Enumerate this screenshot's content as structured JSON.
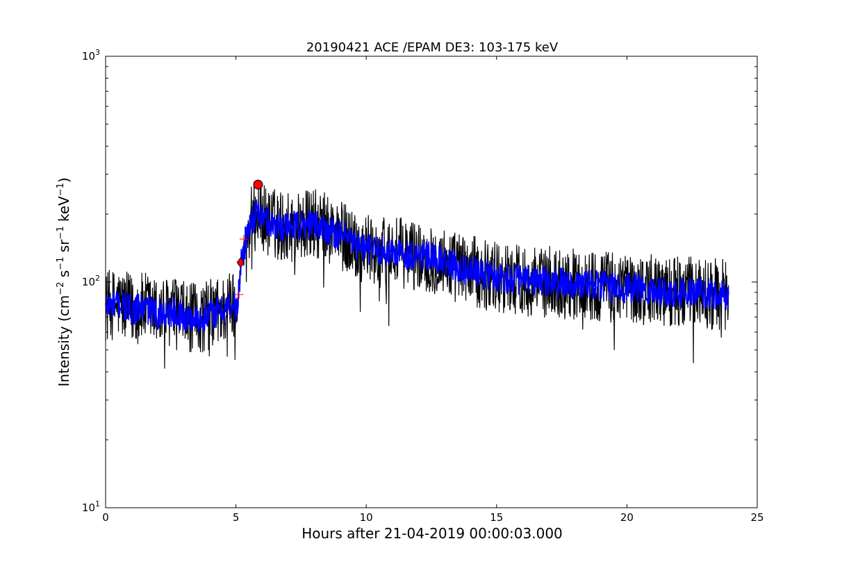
{
  "chart_data": {
    "type": "line",
    "title": "20190421 ACE /EPAM DE3: 103-175 keV",
    "xlabel": "Hours after 21-04-2019 00:00:03.000",
    "ylabel": "Intensity (cm⁻² s⁻¹ sr⁻¹ keV⁻¹)",
    "ylabel_parts": {
      "prefix": "Intensity (cm",
      "exp1": "−2",
      "s": " s",
      "exp2": "−1",
      "sr": " sr",
      "exp3": "−1",
      "kev": " keV",
      "exp4": "−1",
      "suffix": ")"
    },
    "xlim": [
      0,
      25
    ],
    "ylim": [
      10,
      1000
    ],
    "yscale": "log",
    "x_ticks": [
      0,
      5,
      10,
      15,
      20,
      25
    ],
    "x_tick_labels": [
      "0",
      "5",
      "10",
      "15",
      "20",
      "25"
    ],
    "y_major_ticks": [
      10,
      100,
      1000
    ],
    "y_tick_labels": [
      {
        "base": "10",
        "exp": "1"
      },
      {
        "base": "10",
        "exp": "2"
      },
      {
        "base": "10",
        "exp": "3"
      }
    ],
    "grid": false,
    "legend": "none",
    "series": [
      {
        "role": "raw",
        "color": "#000000",
        "x": [
          0.0,
          0.5,
          1.0,
          1.5,
          2.0,
          2.5,
          3.0,
          3.5,
          4.0,
          4.5,
          4.9,
          5.05,
          5.1,
          5.2,
          5.4,
          5.6,
          5.8,
          6.0,
          6.2,
          6.5,
          7.0,
          7.5,
          8.0,
          8.5,
          9.0,
          9.5,
          10.0,
          10.5,
          11.0,
          11.5,
          12.0,
          12.5,
          13.0,
          13.5,
          14.0,
          14.5,
          15.0,
          15.5,
          16.0,
          16.5,
          17.0,
          17.5,
          18.0,
          18.5,
          19.0,
          19.5,
          20.0,
          20.5,
          21.0,
          21.5,
          22.0,
          22.5,
          23.0,
          23.5,
          23.9
        ],
        "y": [
          78,
          80,
          75,
          77,
          72,
          74,
          70,
          68,
          72,
          75,
          80,
          75,
          90,
          120,
          160,
          190,
          200,
          195,
          185,
          180,
          175,
          178,
          180,
          172,
          160,
          150,
          140,
          137,
          135,
          133,
          132,
          128,
          122,
          116,
          112,
          108,
          106,
          104,
          102,
          101,
          100,
          99,
          98,
          97,
          96,
          95,
          94,
          93,
          92,
          91,
          90,
          90,
          89,
          88,
          87
        ],
        "noise_log10_min": [
          -0.18,
          -0.2,
          -0.22,
          -0.2,
          -0.18,
          -0.16,
          -0.2
        ],
        "noise_log10_max": [
          0.18,
          0.2,
          0.2,
          0.2,
          0.2,
          0.2,
          0.2
        ]
      },
      {
        "role": "smoothed",
        "color": "#0000ff",
        "x": [
          0.0,
          0.5,
          1.0,
          1.5,
          2.0,
          2.5,
          3.0,
          3.5,
          4.0,
          4.5,
          4.9,
          5.05,
          5.1,
          5.2,
          5.4,
          5.6,
          5.8,
          6.0,
          6.2,
          6.5,
          7.0,
          7.5,
          8.0,
          8.5,
          9.0,
          9.5,
          10.0,
          10.5,
          11.0,
          11.5,
          12.0,
          12.5,
          13.0,
          13.5,
          14.0,
          14.5,
          15.0,
          15.5,
          16.0,
          16.5,
          17.0,
          17.5,
          18.0,
          18.5,
          19.0,
          19.5,
          20.0,
          20.5,
          21.0,
          21.5,
          22.0,
          22.5,
          23.0,
          23.5,
          23.9
        ],
        "y": [
          78,
          80,
          75,
          77,
          72,
          74,
          70,
          68,
          72,
          75,
          80,
          75,
          90,
          120,
          160,
          190,
          200,
          195,
          185,
          180,
          175,
          178,
          180,
          172,
          160,
          150,
          140,
          137,
          135,
          133,
          132,
          128,
          122,
          116,
          112,
          108,
          106,
          104,
          102,
          101,
          100,
          99,
          98,
          97,
          96,
          95,
          94,
          93,
          92,
          91,
          90,
          90,
          89,
          88,
          87
        ]
      }
    ],
    "markers": [
      {
        "kind": "circle",
        "x": 5.85,
        "y": 270,
        "color": "#ff0000"
      },
      {
        "kind": "diamond",
        "x": 5.18,
        "y": 122,
        "color": "#ff0000"
      },
      {
        "kind": "plus",
        "x": 5.3,
        "y": 155,
        "color": "#ff0000"
      },
      {
        "kind": "plus",
        "x": 5.12,
        "y": 88,
        "color": "#ff0000"
      }
    ]
  }
}
